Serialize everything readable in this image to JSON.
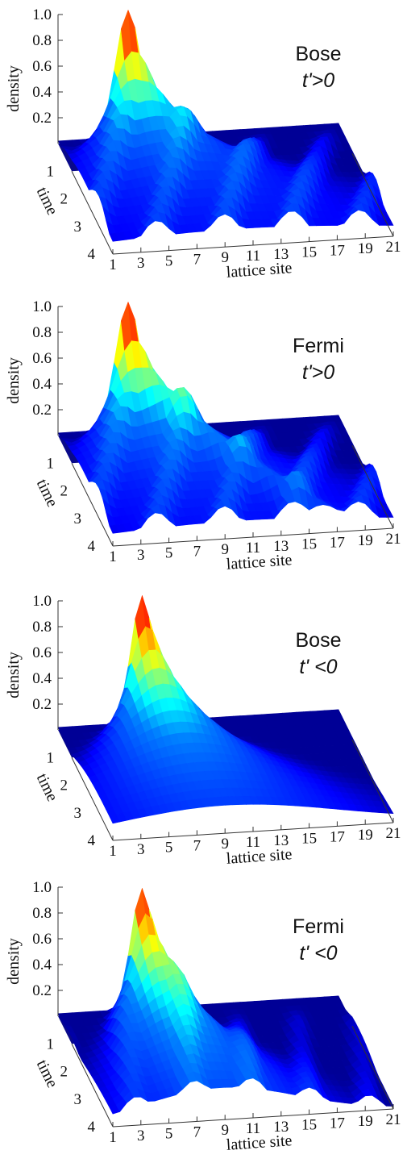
{
  "chart_data": [
    {
      "type": "surface",
      "title": "Bose",
      "subtitle": "t'>0",
      "xlabel": "lattice site",
      "ylabel": "time",
      "zlabel": "density",
      "x_ticks": [
        "1",
        "3",
        "5",
        "7",
        "9",
        "11",
        "13",
        "15",
        "17",
        "19",
        "21"
      ],
      "y_ticks": [
        "1",
        "2",
        "3",
        "4"
      ],
      "z_ticks": [
        "0.2",
        "0.4",
        "0.6",
        "0.8",
        "1.0"
      ],
      "x_range": [
        1,
        21
      ],
      "y_range": [
        0,
        4
      ],
      "z_range": [
        0,
        1.0
      ],
      "colormap": [
        "#00007f",
        "#0000ff",
        "#007fff",
        "#00ffff",
        "#7fff7f",
        "#ffff00",
        "#ff7f00",
        "#ff0000",
        "#7f0000"
      ],
      "peak": {
        "site": 6,
        "time": 0,
        "density": 1.0
      },
      "time_values": [
        0,
        0.5,
        1,
        1.5,
        2,
        2.5,
        3,
        3.5,
        4
      ],
      "surface_variant": "bose_pos"
    },
    {
      "type": "surface",
      "title": "Fermi",
      "subtitle": "t'>0",
      "xlabel": "lattice site",
      "ylabel": "time",
      "zlabel": "density",
      "x_ticks": [
        "1",
        "3",
        "5",
        "7",
        "9",
        "11",
        "13",
        "15",
        "17",
        "19",
        "21"
      ],
      "y_ticks": [
        "1",
        "2",
        "3",
        "4"
      ],
      "z_ticks": [
        "0.2",
        "0.4",
        "0.6",
        "0.8",
        "1.0"
      ],
      "x_range": [
        1,
        21
      ],
      "y_range": [
        0,
        4
      ],
      "z_range": [
        0,
        1.0
      ],
      "colormap": [
        "#00007f",
        "#0000ff",
        "#007fff",
        "#00ffff",
        "#7fff7f",
        "#ffff00",
        "#ff7f00",
        "#ff0000",
        "#7f0000"
      ],
      "peak": {
        "site": 6,
        "time": 0,
        "density": 1.0
      },
      "time_values": [
        0,
        0.5,
        1,
        1.5,
        2,
        2.5,
        3,
        3.5,
        4
      ],
      "surface_variant": "fermi_pos"
    },
    {
      "type": "surface",
      "title": "Bose",
      "subtitle": "t' <0",
      "xlabel": "lattice site",
      "ylabel": "time",
      "zlabel": "density",
      "x_ticks": [
        "1",
        "3",
        "5",
        "7",
        "9",
        "11",
        "13",
        "15",
        "17",
        "19",
        "21"
      ],
      "y_ticks": [
        "1",
        "2",
        "3",
        "4"
      ],
      "z_ticks": [
        "0.2",
        "0.4",
        "0.6",
        "0.8",
        "1.0"
      ],
      "x_range": [
        1,
        21
      ],
      "y_range": [
        0,
        4
      ],
      "z_range": [
        0,
        1.0
      ],
      "colormap": [
        "#00007f",
        "#0000ff",
        "#007fff",
        "#00ffff",
        "#7fff7f",
        "#ffff00",
        "#ff7f00",
        "#ff0000",
        "#7f0000"
      ],
      "peak": {
        "site": 7,
        "time": 0,
        "density": 1.0
      },
      "time_values": [
        0,
        0.5,
        1,
        1.5,
        2,
        2.5,
        3,
        3.5,
        4
      ],
      "surface_variant": "bose_neg"
    },
    {
      "type": "surface",
      "title": "Fermi",
      "subtitle": "t' <0",
      "xlabel": "lattice site",
      "ylabel": "time",
      "zlabel": "density",
      "x_ticks": [
        "1",
        "3",
        "5",
        "7",
        "9",
        "11",
        "13",
        "15",
        "17",
        "19",
        "21"
      ],
      "y_ticks": [
        "1",
        "2",
        "3",
        "4"
      ],
      "z_ticks": [
        "0.2",
        "0.4",
        "0.6",
        "0.8",
        "1.0"
      ],
      "x_range": [
        1,
        21
      ],
      "y_range": [
        0,
        4
      ],
      "z_range": [
        0,
        1.0
      ],
      "colormap": [
        "#00007f",
        "#0000ff",
        "#007fff",
        "#00ffff",
        "#7fff7f",
        "#ffff00",
        "#ff7f00",
        "#ff0000",
        "#7f0000"
      ],
      "peak": {
        "site": 7,
        "time": 0,
        "density": 0.95
      },
      "time_values": [
        0,
        0.5,
        1,
        1.5,
        2,
        2.5,
        3,
        3.5,
        4
      ],
      "surface_variant": "fermi_neg"
    }
  ]
}
